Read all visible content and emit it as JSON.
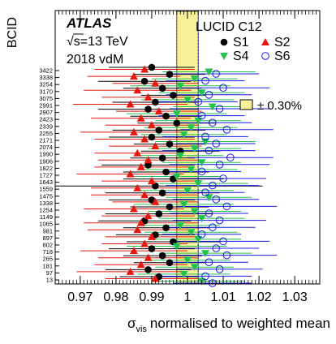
{
  "chart_data": {
    "type": "scatter",
    "experiment": "ATLAS",
    "energy_label": "√s=13 TeV",
    "dataset_label": "2018 vdM",
    "detector_label": "LUCID C12",
    "xlabel_symbol": "σ",
    "xlabel_subscript": "vis",
    "xlabel_text": "normalised to weighted mean",
    "ylabel": "BCID",
    "xlim": [
      0.963,
      1.037
    ],
    "x_ticks": [
      0.97,
      0.98,
      0.99,
      1,
      1.01,
      1.02,
      1.03
    ],
    "x_tick_labels": [
      "0.97",
      "0.98",
      "0.99",
      "1",
      "1.01",
      "1.02",
      "1.03"
    ],
    "bcid_labels": [
      "3422",
      "3338",
      "3254",
      "3170",
      "3075",
      "2991",
      "2907",
      "2423",
      "2339",
      "2255",
      "2171",
      "2074",
      "1990",
      "1906",
      "1822",
      "1727",
      "1643",
      "1559",
      "1475",
      "1338",
      "1254",
      "1149",
      "1065",
      "981",
      "897",
      "802",
      "718",
      "265",
      "181",
      "97",
      "13"
    ],
    "band_label": "± 0.30%",
    "band_halfwidth": 0.003,
    "legend_placement": "top-right",
    "grid": false,
    "series": [
      {
        "name": "S1",
        "marker": "filled-circle",
        "color": "#000000",
        "values": [
          0.99,
          0.995,
          0.988,
          0.993,
          0.996,
          0.991,
          0.989,
          0.994,
          0.997,
          0.992,
          0.99,
          0.995,
          0.998,
          0.993,
          0.989,
          0.994,
          0.996,
          0.991,
          0.993,
          0.99,
          0.995,
          0.992,
          0.988,
          0.994,
          0.991,
          0.996,
          0.99,
          0.993,
          0.995,
          0.989,
          0.992
        ],
        "errors": [
          0.012,
          0.01,
          0.013,
          0.011,
          0.009,
          0.012,
          0.014,
          0.01,
          0.011,
          0.013,
          0.012,
          0.01,
          0.011,
          0.009,
          0.013,
          0.012,
          0.014,
          0.03,
          0.016,
          0.012,
          0.011,
          0.015,
          0.013,
          0.012,
          0.011,
          0.013,
          0.012,
          0.011,
          0.01,
          0.012,
          0.011
        ]
      },
      {
        "name": "S2",
        "marker": "filled-triangle",
        "color": "#e8170e",
        "values": [
          0.988,
          0.985,
          0.991,
          0.986,
          0.989,
          0.984,
          0.992,
          0.987,
          0.99,
          0.985,
          0.988,
          0.991,
          0.986,
          0.989,
          0.987,
          0.984,
          0.99,
          0.986,
          0.988,
          0.991,
          0.985,
          0.989,
          0.987,
          0.986,
          0.99,
          0.988,
          0.985,
          0.989,
          0.987,
          0.984,
          0.991
        ],
        "errors": [
          0.014,
          0.013,
          0.012,
          0.015,
          0.013,
          0.016,
          0.012,
          0.014,
          0.013,
          0.015,
          0.014,
          0.013,
          0.012,
          0.014,
          0.013,
          0.015,
          0.014,
          0.013,
          0.015,
          0.012,
          0.014,
          0.013,
          0.016,
          0.014,
          0.013,
          0.012,
          0.015,
          0.014,
          0.013,
          0.015,
          0.014
        ]
      },
      {
        "name": "S4",
        "marker": "filled-triangle-down",
        "color": "#22c24e",
        "values": [
          1.006,
          1.002,
          0.998,
          1.004,
          1.0,
          1.007,
          0.997,
          1.003,
          1.001,
          0.999,
          1.005,
          1.002,
          0.998,
          1.004,
          1.001,
          0.997,
          1.003,
          1.0,
          1.006,
          0.999,
          1.002,
          1.004,
          0.998,
          1.001,
          1.003,
          0.997,
          1.005,
          1.0,
          1.002,
          0.999,
          1.004
        ],
        "errors": [
          0.013,
          0.012,
          0.014,
          0.012,
          0.013,
          0.011,
          0.014,
          0.012,
          0.013,
          0.012,
          0.014,
          0.013,
          0.012,
          0.011,
          0.013,
          0.012,
          0.014,
          0.013,
          0.012,
          0.014,
          0.013,
          0.012,
          0.011,
          0.013,
          0.012,
          0.014,
          0.013,
          0.012,
          0.011,
          0.013,
          0.012
        ]
      },
      {
        "name": "S6",
        "marker": "open-circle",
        "color": "#1a1ae6",
        "values": [
          1.008,
          1.005,
          1.01,
          1.006,
          1.003,
          1.009,
          1.004,
          1.007,
          1.011,
          1.005,
          1.008,
          1.006,
          1.012,
          1.009,
          1.004,
          1.01,
          1.007,
          1.005,
          1.008,
          1.011,
          1.006,
          1.009,
          1.007,
          1.004,
          1.01,
          1.008,
          1.011,
          1.006,
          1.009,
          1.005,
          1.007
        ],
        "errors": [
          0.012,
          0.011,
          0.013,
          0.012,
          0.011,
          0.014,
          0.012,
          0.011,
          0.013,
          0.012,
          0.011,
          0.013,
          0.012,
          0.014,
          0.011,
          0.012,
          0.013,
          0.011,
          0.012,
          0.014,
          0.011,
          0.013,
          0.012,
          0.011,
          0.013,
          0.012,
          0.014,
          0.011,
          0.012,
          0.013,
          0.011
        ]
      }
    ]
  }
}
